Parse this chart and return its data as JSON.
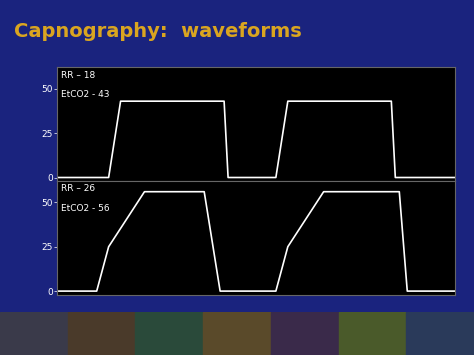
{
  "title": "Capnography:  waveforms",
  "title_color": "#DAA520",
  "title_fontsize": 14,
  "bg_color": "#1a237e",
  "panel_bg": "#000000",
  "wave_color": "#ffffff",
  "text_color": "#ffffff",
  "panel1_label1": "RR – 18",
  "panel1_label2": "EtCO2 - 43",
  "panel2_label1": "RR – 26",
  "panel2_label2": "EtCO2 - 56",
  "yticks": [
    0,
    25,
    50
  ],
  "ylim": [
    -2,
    62
  ],
  "panel1_wave_x": [
    0,
    0.13,
    0.16,
    0.22,
    0.37,
    0.42,
    0.43,
    0.55,
    0.58,
    0.64,
    0.79,
    0.84,
    0.85,
    1.0
  ],
  "panel1_wave_y": [
    0,
    0,
    43,
    43,
    43,
    43,
    0,
    0,
    43,
    43,
    43,
    43,
    0,
    0
  ],
  "panel2_wave_x": [
    0,
    0.1,
    0.13,
    0.22,
    0.37,
    0.41,
    0.43,
    0.55,
    0.58,
    0.67,
    0.82,
    0.86,
    0.88,
    1.0
  ],
  "panel2_wave_y": [
    0,
    0,
    25,
    56,
    56,
    0,
    0,
    0,
    25,
    56,
    56,
    56,
    0,
    0
  ],
  "teal_strip_color": "#4db6ac",
  "photo_strip_color": "#5d4037"
}
